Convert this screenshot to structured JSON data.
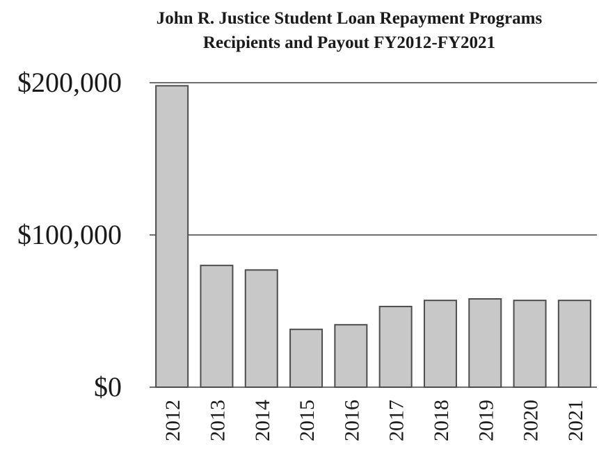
{
  "chart_data": {
    "type": "bar",
    "title_lines": [
      "John R. Justice Student Loan Repayment Programs",
      "Recipients and Payout FY2012-FY2021"
    ],
    "categories": [
      "2012",
      "2013",
      "2014",
      "2015",
      "2016",
      "2017",
      "2018",
      "2019",
      "2020",
      "2021"
    ],
    "values": [
      198000,
      80000,
      77000,
      38000,
      41000,
      53000,
      57000,
      58000,
      57000,
      57000
    ],
    "ylim": [
      0,
      200000
    ],
    "yticks": [
      {
        "value": 0,
        "label": "$0"
      },
      {
        "value": 100000,
        "label": "$100,000"
      },
      {
        "value": 200000,
        "label": "$200,000"
      }
    ],
    "grid": true,
    "bar_color": "#c8c8c8",
    "bar_edge_color": "#4d4d4d"
  }
}
